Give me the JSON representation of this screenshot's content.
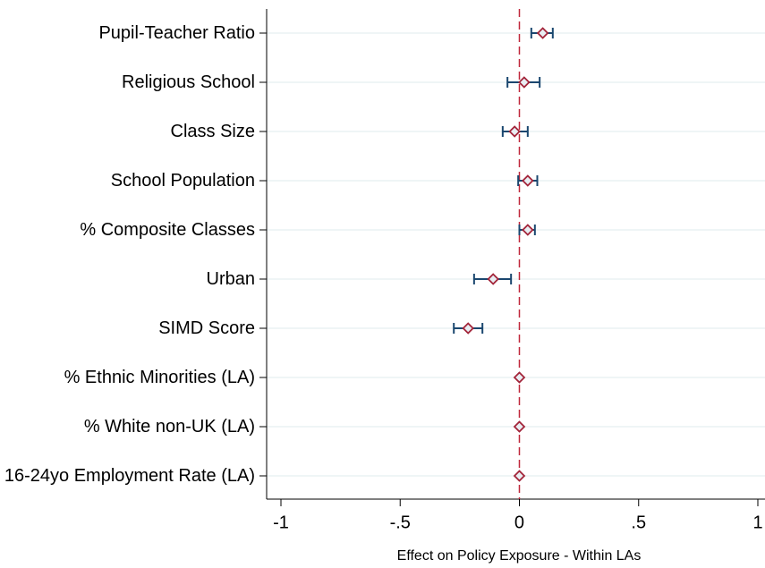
{
  "chart_data": {
    "type": "coefplot",
    "categories": [
      "Pupil-Teacher Ratio",
      "Religious School",
      "Class Size",
      "School Population",
      "% Composite Classes",
      "Urban",
      "SIMD Score",
      "% Ethnic Minorities (LA)",
      "% White non-UK (LA)",
      "16-24yo Employment Rate (LA)"
    ],
    "values": [
      0.098,
      0.02,
      -0.02,
      0.035,
      0.035,
      -0.11,
      -0.215,
      0,
      0,
      0
    ],
    "ci_low": [
      0.05,
      -0.05,
      -0.07,
      -0.005,
      0,
      -0.19,
      -0.275,
      0,
      0,
      0
    ],
    "ci_high": [
      0.14,
      0.085,
      0.035,
      0.075,
      0.065,
      -0.035,
      -0.155,
      0,
      0,
      0
    ],
    "color": "#a3253a",
    "ci_color": "#1a476f",
    "reference_line": 0,
    "reference_color": "#c0283c",
    "xlabel": "Effect on Policy Exposure - Within LAs",
    "xlim": [
      -1.06,
      1.03
    ],
    "xticks": [
      -1,
      {
        "value": -0.5,
        "label": "-.5"
      },
      0,
      {
        "value": 0.5,
        "label": ".5"
      },
      1
    ],
    "grid": true
  }
}
